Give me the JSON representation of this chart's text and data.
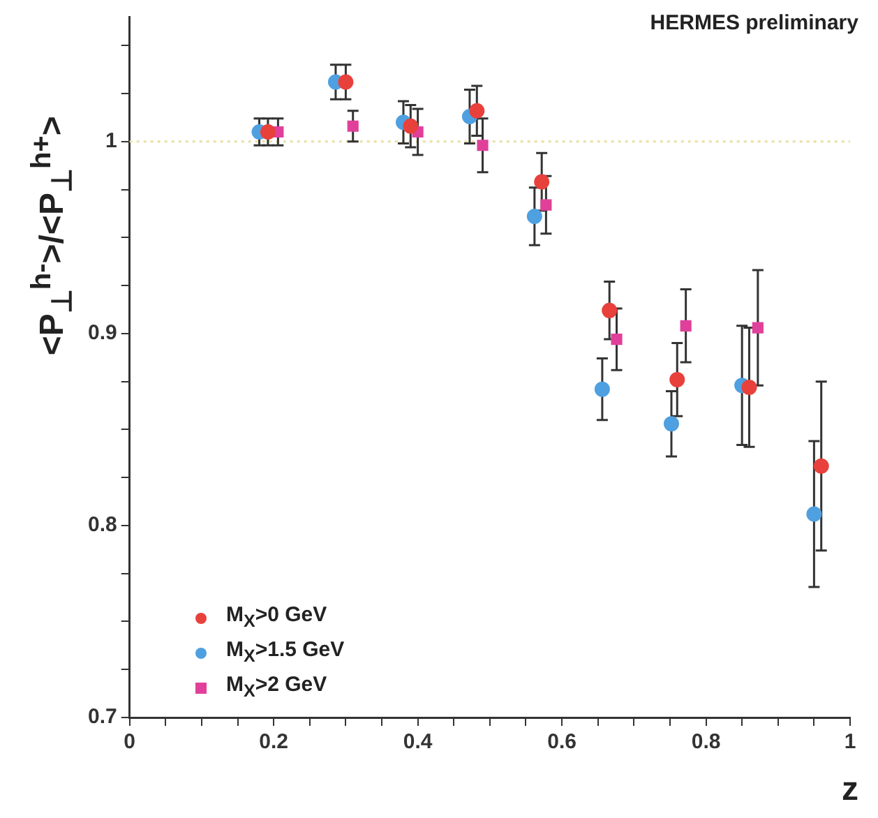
{
  "chart_data": {
    "type": "scatter",
    "xlabel": "z",
    "ylabel": "<P$_{⊥}$$^{h-}$>/<P$_{⊥}$$^{h+}$>",
    "annotations": [
      "HERMES preliminary"
    ],
    "xlim": [
      0,
      1
    ],
    "ylim": [
      0.7,
      1.065
    ],
    "xticks": [
      0,
      {
        "value": 0.05,
        "label": null
      },
      {
        "value": 0.1,
        "label": null
      },
      {
        "value": 0.15,
        "label": null
      },
      0.2,
      {
        "value": 0.25,
        "label": null
      },
      {
        "value": 0.3,
        "label": null
      },
      {
        "value": 0.35,
        "label": null
      },
      0.4,
      {
        "value": 0.45,
        "label": null
      },
      {
        "value": 0.5,
        "label": null
      },
      {
        "value": 0.55,
        "label": null
      },
      0.6,
      {
        "value": 0.65,
        "label": null
      },
      {
        "value": 0.7,
        "label": null
      },
      {
        "value": 0.75,
        "label": null
      },
      0.8,
      {
        "value": 0.85,
        "label": null
      },
      {
        "value": 0.9,
        "label": null
      },
      {
        "value": 0.95,
        "label": null
      },
      1
    ],
    "yticks": [
      0.7,
      {
        "value": 0.725,
        "label": null
      },
      {
        "value": 0.75,
        "label": null
      },
      {
        "value": 0.775,
        "label": null
      },
      0.8,
      {
        "value": 0.825,
        "label": null
      },
      {
        "value": 0.85,
        "label": null
      },
      {
        "value": 0.875,
        "label": null
      },
      0.9,
      {
        "value": 0.925,
        "label": null
      },
      {
        "value": 0.95,
        "label": null
      },
      {
        "value": 0.975,
        "label": null
      },
      1,
      {
        "value": 1.025,
        "label": null
      },
      {
        "value": 1.05,
        "label": null
      }
    ],
    "ref_lines": [
      {
        "axis": "y",
        "value": 1,
        "color": "#e8e0a0",
        "line_style": "dotted"
      }
    ],
    "legend": "bottom left",
    "grid": false,
    "series": [
      {
        "name": "M$_{X}$>0 GeV",
        "color": "#e8413c",
        "marker": "circle",
        "x": [
          0.192,
          0.3,
          0.39,
          0.482,
          0.572,
          0.666,
          0.76,
          0.86,
          0.96
        ],
        "values": [
          1.005,
          1.031,
          1.008,
          1.016,
          0.979,
          0.912,
          0.876,
          0.872,
          0.831
        ],
        "errors": [
          0.007,
          0.009,
          0.011,
          0.013,
          0.015,
          0.015,
          0.019,
          0.031,
          0.044
        ]
      },
      {
        "name": "M$_{X}$>1.5 GeV",
        "color": "#4fa0e0",
        "marker": "circle",
        "x": [
          0.18,
          0.286,
          0.38,
          0.472,
          0.562,
          0.656,
          0.752,
          0.85,
          0.95
        ],
        "values": [
          1.005,
          1.031,
          1.01,
          1.013,
          0.961,
          0.871,
          0.853,
          0.873,
          0.806
        ],
        "errors": [
          0.007,
          0.009,
          0.011,
          0.014,
          0.015,
          0.016,
          0.017,
          0.031,
          0.038
        ]
      },
      {
        "name": "M$_{X}$>2 GeV",
        "color": "#e0409a",
        "marker": "square",
        "x": [
          0.206,
          0.31,
          0.4,
          0.49,
          0.578,
          0.676,
          0.772,
          0.872
        ],
        "values": [
          1.005,
          1.008,
          1.005,
          0.998,
          0.967,
          0.897,
          0.904,
          0.903
        ],
        "errors": [
          0.007,
          0.008,
          0.012,
          0.014,
          0.015,
          0.016,
          0.019,
          0.03
        ]
      }
    ]
  }
}
